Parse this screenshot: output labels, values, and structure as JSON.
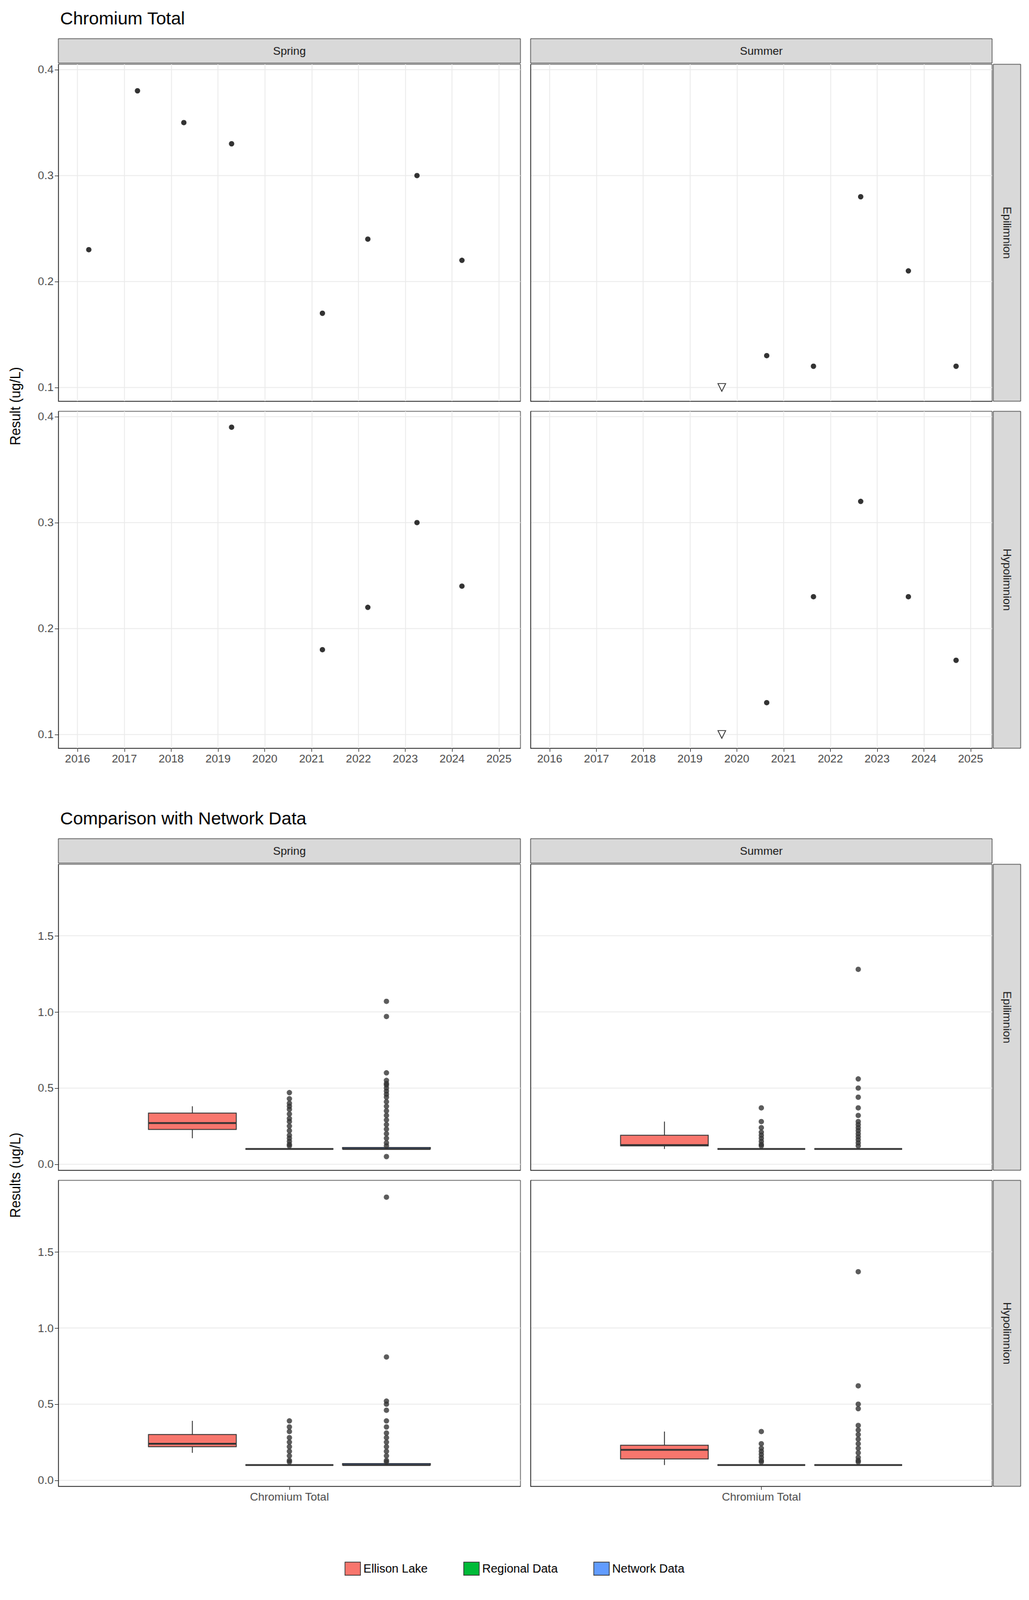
{
  "chart_data": [
    {
      "type": "scatter",
      "title": "Chromium Total",
      "y_label": "Result (ug/L)",
      "xlim": [
        2015.59,
        2025.46
      ],
      "xticks": [
        2016,
        2017,
        2018,
        2019,
        2020,
        2021,
        2022,
        2023,
        2024,
        2025
      ],
      "ylim": [
        0.087,
        0.405
      ],
      "yticks": [
        0.1,
        0.2,
        0.3,
        0.4
      ],
      "grid": true,
      "columns": [
        "Spring",
        "Summer"
      ],
      "rows": [
        "Epilimnion",
        "Hypolimnion"
      ],
      "panels": [
        {
          "column": "Spring",
          "row": "Epilimnion",
          "series": [
            {
              "marker": "circle",
              "color": "#000000",
              "x": [
                2016.24,
                2017.28,
                2018.27,
                2019.29,
                2021.23,
                2022.2,
                2023.25,
                2024.21
              ],
              "values": [
                0.23,
                0.38,
                0.35,
                0.33,
                0.17,
                0.24,
                0.3,
                0.22
              ]
            }
          ]
        },
        {
          "column": "Summer",
          "row": "Epilimnion",
          "series": [
            {
              "marker": "circle",
              "color": "#000000",
              "x": [
                2020.64,
                2021.64,
                2022.65,
                2023.67,
                2024.69
              ],
              "values": [
                0.13,
                0.12,
                0.28,
                0.21,
                0.12
              ]
            },
            {
              "marker": "triangle_down_open",
              "color": "#000000",
              "x": [
                2019.68
              ],
              "values": [
                0.1
              ]
            }
          ]
        },
        {
          "column": "Spring",
          "row": "Hypolimnion",
          "series": [
            {
              "marker": "circle",
              "color": "#000000",
              "x": [
                2019.29,
                2021.23,
                2022.2,
                2023.25,
                2024.21
              ],
              "values": [
                0.39,
                0.18,
                0.22,
                0.3,
                0.24
              ]
            }
          ]
        },
        {
          "column": "Summer",
          "row": "Hypolimnion",
          "series": [
            {
              "marker": "circle",
              "color": "#000000",
              "x": [
                2020.64,
                2021.64,
                2022.65,
                2023.67,
                2024.69
              ],
              "values": [
                0.13,
                0.23,
                0.32,
                0.23,
                0.17
              ]
            },
            {
              "marker": "triangle_down_open",
              "color": "#000000",
              "x": [
                2019.68
              ],
              "values": [
                0.1
              ]
            }
          ]
        }
      ]
    },
    {
      "type": "boxplot",
      "title": "Comparison with Network Data",
      "y_label": "Results (ug/L)",
      "categories": [
        "Chromium Total"
      ],
      "ylim": [
        -0.04,
        1.97
      ],
      "yticks": [
        {
          "value": 0,
          "label": "0.0"
        },
        {
          "value": 0.5,
          "label": "0.5"
        },
        {
          "value": 1,
          "label": "1.0"
        },
        {
          "value": 1.5,
          "label": "1.5"
        }
      ],
      "grid": true,
      "legend": "bottom",
      "columns": [
        "Spring",
        "Summer"
      ],
      "rows": [
        "Epilimnion",
        "Hypolimnion"
      ],
      "series": [
        {
          "name": "Ellison Lake",
          "color": "#F8766D"
        },
        {
          "name": "Regional Data",
          "color": "#00BA38"
        },
        {
          "name": "Network Data",
          "color": "#619CFF"
        }
      ],
      "panels": [
        {
          "column": "Spring",
          "row": "Epilimnion",
          "boxes": [
            {
              "series": "Ellison Lake",
              "stats": [
                0.17,
                0.2275,
                0.27,
                0.335,
                0.38
              ],
              "outliers": []
            },
            {
              "series": "Regional Data",
              "stats": [
                0.1,
                0.1,
                0.1,
                0.1,
                0.1
              ],
              "outliers": [
                0.47,
                0.43,
                0.4,
                0.38,
                0.36,
                0.33,
                0.3,
                0.28,
                0.25,
                0.22,
                0.19,
                0.17,
                0.15,
                0.13,
                0.12
              ]
            },
            {
              "series": "Network Data",
              "stats": [
                0.1,
                0.1,
                0.1,
                0.11,
                0.11
              ],
              "outliers": [
                1.07,
                0.97,
                0.6,
                0.55,
                0.53,
                0.52,
                0.5,
                0.48,
                0.46,
                0.44,
                0.41,
                0.38,
                0.35,
                0.32,
                0.29,
                0.26,
                0.23,
                0.2,
                0.17,
                0.14,
                0.12,
                0.05
              ]
            }
          ]
        },
        {
          "column": "Summer",
          "row": "Epilimnion",
          "boxes": [
            {
              "series": "Ellison Lake",
              "stats": [
                0.1,
                0.12,
                0.125,
                0.19,
                0.28
              ],
              "outliers": []
            },
            {
              "series": "Regional Data",
              "stats": [
                0.1,
                0.1,
                0.1,
                0.1,
                0.1
              ],
              "outliers": [
                0.37,
                0.28,
                0.24,
                0.21,
                0.19,
                0.17,
                0.15,
                0.13,
                0.12
              ]
            },
            {
              "series": "Network Data",
              "stats": [
                0.1,
                0.1,
                0.1,
                0.1,
                0.1
              ],
              "outliers": [
                1.28,
                0.56,
                0.5,
                0.44,
                0.37,
                0.32,
                0.28,
                0.26,
                0.24,
                0.22,
                0.2,
                0.18,
                0.16,
                0.14,
                0.12
              ]
            }
          ]
        },
        {
          "column": "Spring",
          "row": "Hypolimnion",
          "boxes": [
            {
              "series": "Ellison Lake",
              "stats": [
                0.18,
                0.22,
                0.24,
                0.3,
                0.39
              ],
              "outliers": []
            },
            {
              "series": "Regional Data",
              "stats": [
                0.1,
                0.1,
                0.1,
                0.1,
                0.1
              ],
              "outliers": [
                0.39,
                0.35,
                0.32,
                0.28,
                0.25,
                0.22,
                0.19,
                0.16,
                0.13,
                0.12
              ]
            },
            {
              "series": "Network Data",
              "stats": [
                0.1,
                0.1,
                0.1,
                0.11,
                0.11
              ],
              "outliers": [
                1.86,
                0.81,
                0.52,
                0.5,
                0.46,
                0.39,
                0.35,
                0.31,
                0.28,
                0.25,
                0.22,
                0.19,
                0.16,
                0.13,
                0.12
              ]
            }
          ]
        },
        {
          "column": "Summer",
          "row": "Hypolimnion",
          "boxes": [
            {
              "series": "Ellison Lake",
              "stats": [
                0.1,
                0.14,
                0.2,
                0.23,
                0.32
              ],
              "outliers": []
            },
            {
              "series": "Regional Data",
              "stats": [
                0.1,
                0.1,
                0.1,
                0.1,
                0.1
              ],
              "outliers": [
                0.32,
                0.24,
                0.21,
                0.19,
                0.17,
                0.15,
                0.13,
                0.12
              ]
            },
            {
              "series": "Network Data",
              "stats": [
                0.1,
                0.1,
                0.1,
                0.1,
                0.1
              ],
              "outliers": [
                1.37,
                0.62,
                0.5,
                0.47,
                0.36,
                0.33,
                0.3,
                0.27,
                0.24,
                0.21,
                0.18,
                0.15,
                0.13,
                0.12
              ]
            }
          ]
        }
      ]
    }
  ]
}
